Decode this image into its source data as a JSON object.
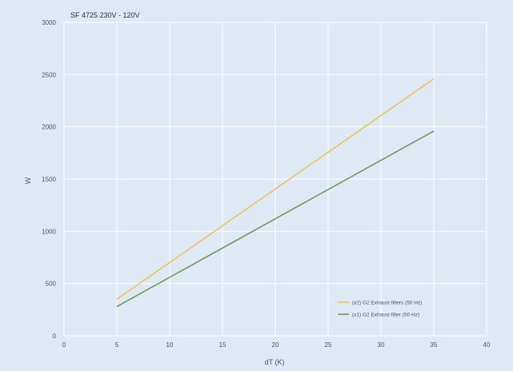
{
  "chart_data": {
    "type": "line",
    "title": "SF 4725 230V - 120V",
    "xlabel": "dT (K)",
    "ylabel": "W",
    "xlim": [
      0,
      40
    ],
    "ylim": [
      0,
      3000
    ],
    "xticks": [
      0,
      5,
      10,
      15,
      20,
      25,
      30,
      35,
      40
    ],
    "yticks": [
      0,
      500,
      1000,
      1500,
      2000,
      2500,
      3000
    ],
    "grid": true,
    "legend_position": "bottom-right",
    "series": [
      {
        "name": "(x2) G2 Exhaust filters (50 Hz)",
        "color": "#f2c25c",
        "x": [
          5,
          35
        ],
        "y": [
          350,
          2460
        ]
      },
      {
        "name": "(x1) G2 Exhaust filter (50 Hz)",
        "color": "#6b9a5a",
        "x": [
          5,
          35
        ],
        "y": [
          280,
          1960
        ]
      }
    ]
  }
}
